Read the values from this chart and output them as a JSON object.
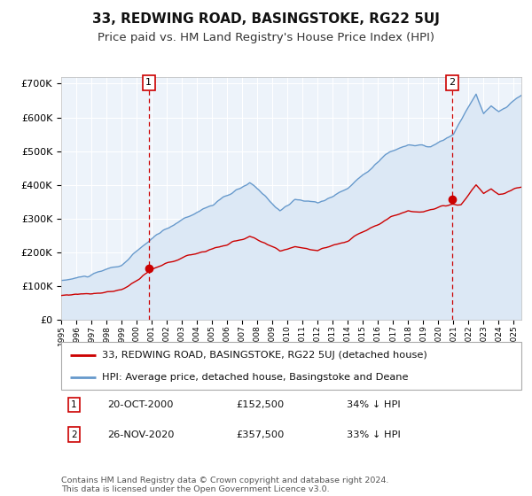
{
  "title": "33, REDWING ROAD, BASINGSTOKE, RG22 5UJ",
  "subtitle": "Price paid vs. HM Land Registry's House Price Index (HPI)",
  "xlim_start": 1995.0,
  "xlim_end": 2025.5,
  "ylim_min": 0,
  "ylim_max": 720000,
  "hpi_fill_color": "#dce8f5",
  "hpi_line_color": "#6699cc",
  "price_color": "#cc0000",
  "vline_color": "#cc0000",
  "plot_bg": "#edf3fa",
  "grid_color": "#ffffff",
  "legend_label_price": "33, REDWING ROAD, BASINGSTOKE, RG22 5UJ (detached house)",
  "legend_label_hpi": "HPI: Average price, detached house, Basingstoke and Deane",
  "sale1_date": 2000.8,
  "sale1_price": 152500,
  "sale1_label": "20-OCT-2000",
  "sale1_amount": "£152,500",
  "sale1_pct": "34% ↓ HPI",
  "sale2_date": 2020.9,
  "sale2_price": 357500,
  "sale2_label": "26-NOV-2020",
  "sale2_amount": "£357,500",
  "sale2_pct": "33% ↓ HPI",
  "copyright_text": "Contains HM Land Registry data © Crown copyright and database right 2024.\nThis data is licensed under the Open Government Licence v3.0."
}
